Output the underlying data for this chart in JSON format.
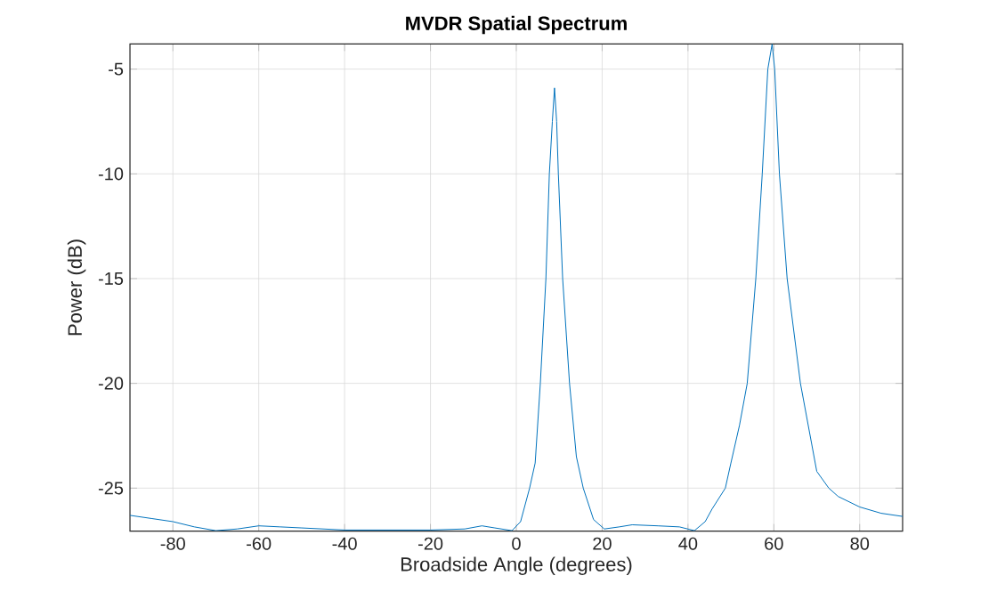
{
  "chart_data": {
    "type": "line",
    "title": "MVDR Spatial Spectrum",
    "xlabel": "Broadside Angle (degrees)",
    "ylabel": "Power (dB)",
    "xlim": [
      -90,
      90
    ],
    "ylim": [
      -27.05,
      -3.8
    ],
    "xticks": [
      -80,
      -60,
      -40,
      -20,
      0,
      20,
      40,
      60,
      80
    ],
    "yticks": [
      -25,
      -20,
      -15,
      -10,
      -5
    ],
    "grid": true,
    "series": [
      {
        "color": "#0072bd",
        "x": [
          -90,
          -85,
          -80,
          -75,
          -70,
          -65,
          -60,
          -55,
          -50,
          -40,
          -30,
          -20,
          -12,
          -8,
          -5,
          -1,
          1,
          3.1,
          4.4,
          5.6,
          6.9,
          7.7,
          8.4,
          8.9,
          9.4,
          9.8,
          10.8,
          12.4,
          14,
          15.6,
          18,
          20.5,
          24,
          27,
          33,
          38,
          41.5,
          44,
          45.6,
          48.7,
          50,
          52,
          53.8,
          55.8,
          57.3,
          58.6,
          59.6,
          60.2,
          61.3,
          63.1,
          66.2,
          70,
          72.8,
          75,
          80,
          85,
          90
        ],
        "values": [
          -26.3,
          -26.45,
          -26.6,
          -26.85,
          -27.03,
          -26.95,
          -26.8,
          -26.85,
          -26.9,
          -27.0,
          -27.0,
          -27.0,
          -26.95,
          -26.8,
          -26.9,
          -27.03,
          -26.6,
          -25,
          -23.8,
          -20,
          -15,
          -10,
          -7.5,
          -5.9,
          -7.5,
          -10,
          -15,
          -20,
          -23.5,
          -25,
          -26.5,
          -26.95,
          -26.85,
          -26.75,
          -26.8,
          -26.85,
          -27.03,
          -26.6,
          -26,
          -25,
          -23.8,
          -22,
          -20,
          -15,
          -10,
          -5,
          -3.8,
          -5,
          -10,
          -15,
          -20,
          -24.2,
          -25,
          -25.4,
          -25.9,
          -26.2,
          -26.35
        ]
      }
    ]
  }
}
